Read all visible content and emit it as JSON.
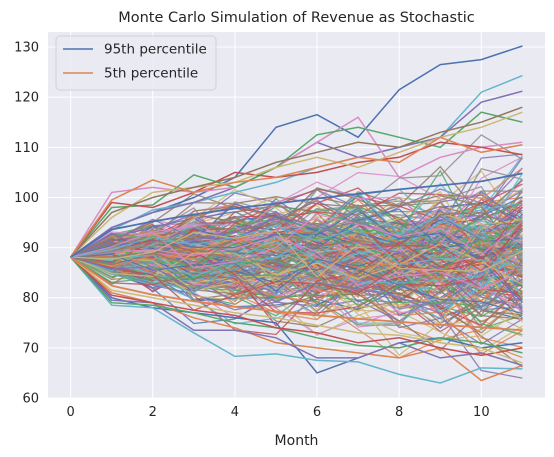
{
  "chart_data": {
    "type": "line",
    "title": "Monte Carlo Simulation of Revenue as Stochastic",
    "xlabel": "Month",
    "ylabel": "",
    "xlim": [
      -0.55,
      11.55
    ],
    "ylim": [
      60,
      133
    ],
    "x": [
      0,
      1,
      2,
      3,
      4,
      5,
      6,
      7,
      8,
      9,
      10,
      11
    ],
    "x_ticks": [
      0,
      2,
      4,
      6,
      8,
      10
    ],
    "y_ticks": [
      60,
      70,
      80,
      90,
      100,
      110,
      120,
      130
    ],
    "grid": true,
    "legend_position": "top-left",
    "series": [
      {
        "name": "95th percentile",
        "color": "#4c72b0",
        "values": [
          88.1,
          93.6,
          95.2,
          96.6,
          97.8,
          98.8,
          99.8,
          100.7,
          101.6,
          102.4,
          103.2,
          104.8
        ]
      },
      {
        "name": "5th percentile",
        "color": "#dd8452",
        "values": [
          88.1,
          82.4,
          80.6,
          79.3,
          78.2,
          77.3,
          76.5,
          75.8,
          75.2,
          74.6,
          74.1,
          73.5
        ]
      }
    ],
    "highlighted_paths": [
      {
        "color": "#4c72b0",
        "values": [
          88.1,
          94.0,
          97.0,
          100.0,
          104.0,
          114.0,
          116.5,
          112.0,
          121.5,
          126.5,
          127.5,
          130.2
        ]
      },
      {
        "color": "#64b5cd",
        "values": [
          88.1,
          93.5,
          97.5,
          99.0,
          101.0,
          103.0,
          106.0,
          108.0,
          110.0,
          112.0,
          121.0,
          124.3
        ]
      },
      {
        "color": "#8172b3",
        "values": [
          88.1,
          94.0,
          97.0,
          99.0,
          102.0,
          106.0,
          111.0,
          108.0,
          110.0,
          112.0,
          119.0,
          121.2
        ]
      },
      {
        "color": "#da8bc3",
        "values": [
          88.1,
          101.0,
          102.0,
          101.0,
          102.0,
          106.0,
          111.0,
          116.0,
          104.0,
          108.0,
          110.0,
          111.0
        ]
      },
      {
        "color": "#55a868",
        "values": [
          88.1,
          98.0,
          98.5,
          104.5,
          102.0,
          106.0,
          112.5,
          114.0,
          112.0,
          110.0,
          117.0,
          115.0
        ]
      },
      {
        "color": "#c44e52",
        "values": [
          88.1,
          99.0,
          98.0,
          101.0,
          105.0,
          104.0,
          105.0,
          107.0,
          108.0,
          111.0,
          110.0,
          108.5
        ]
      },
      {
        "color": "#ccb974",
        "values": [
          88.1,
          96.0,
          101.0,
          102.0,
          103.0,
          106.0,
          108.0,
          106.0,
          109.0,
          112.0,
          114.0,
          117.0
        ]
      },
      {
        "color": "#937860",
        "values": [
          88.1,
          97.0,
          100.0,
          102.0,
          104.0,
          107.0,
          109.0,
          111.0,
          110.0,
          113.0,
          115.0,
          118.0
        ]
      },
      {
        "color": "#dd8452",
        "values": [
          88.1,
          99.5,
          103.5,
          101.0,
          103.0,
          104.0,
          106.0,
          108.0,
          107.0,
          112.0,
          109.0,
          110.5
        ]
      },
      {
        "color": "#4c72b0",
        "values": [
          88.1,
          80.0,
          78.0,
          77.0,
          76.0,
          75.0,
          65.0,
          68.0,
          71.0,
          72.0,
          70.0,
          71.0
        ]
      },
      {
        "color": "#64b5cd",
        "values": [
          88.1,
          78.5,
          78.0,
          73.0,
          68.3,
          68.8,
          67.5,
          67.2,
          64.7,
          63.0,
          66.0,
          65.8
        ]
      },
      {
        "color": "#dd8452",
        "values": [
          88.1,
          81.0,
          79.0,
          76.0,
          74.0,
          71.0,
          70.0,
          69.0,
          68.0,
          70.0,
          63.5,
          66.5
        ]
      },
      {
        "color": "#8172b3",
        "values": [
          88.1,
          79.5,
          79.0,
          73.5,
          73.5,
          72.0,
          68.0,
          68.0,
          71.0,
          68.0,
          69.0,
          66.5
        ]
      },
      {
        "color": "#55a868",
        "values": [
          88.1,
          79.0,
          78.5,
          77.0,
          75.0,
          74.0,
          72.0,
          70.5,
          70.0,
          72.0,
          71.0,
          69.0
        ]
      },
      {
        "color": "#c44e52",
        "values": [
          88.1,
          80.5,
          79.0,
          77.5,
          76.5,
          74.0,
          73.0,
          71.0,
          72.0,
          70.0,
          68.5,
          70.0
        ]
      },
      {
        "color": "#ccb974",
        "values": [
          88.1,
          81.5,
          80.0,
          78.5,
          77.0,
          76.0,
          74.5,
          73.0,
          72.5,
          71.0,
          70.0,
          67.0
        ]
      }
    ]
  }
}
